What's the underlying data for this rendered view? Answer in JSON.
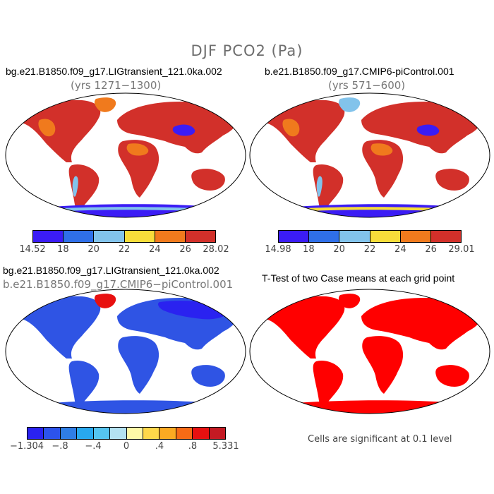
{
  "suptitle": "DJF PCO2 (Pa)",
  "panels": [
    {
      "title": "bg.e21.B1850.f09_g17.LIGtransient_121.0ka.002",
      "subtitle": "(yrs 1271−1300)"
    },
    {
      "title": "b.e21.B1850.f09_g17.CMIP6-piControl.001",
      "subtitle": "(yrs 571−600)"
    },
    {
      "title": "bg.e21.B1850.f09_g17.LIGtransient_121.0ka.002",
      "subtitle": "b.e21.B1850.f09_g17.CMIP6−piControl.001"
    },
    {
      "title": "T-Test of two Case means at each grid point",
      "subtitle": ""
    }
  ],
  "colorbars": [
    {
      "colors": [
        "#3b1cf5",
        "#2f6fe8",
        "#82c3eb",
        "#f7dd3a",
        "#f07a1d",
        "#d2302a"
      ],
      "labels": [
        "14.52",
        "18",
        "20",
        "22",
        "24",
        "26",
        "28.02"
      ]
    },
    {
      "colors": [
        "#3b1cf5",
        "#2f6fe8",
        "#82c3eb",
        "#f7dd3a",
        "#f07a1d",
        "#d2302a"
      ],
      "labels": [
        "14.98",
        "18",
        "20",
        "22",
        "24",
        "26",
        "29.01"
      ]
    },
    {
      "colors": [
        "#2a22f0",
        "#2c53ec",
        "#2f7ee6",
        "#28a8ef",
        "#55c4f0",
        "#b4e2f2",
        "#fff9a8",
        "#ffd84a",
        "#fbaa22",
        "#f76b15",
        "#e81010",
        "#c41a23"
      ],
      "labels": [
        "−1.304",
        "−.8",
        "−.4",
        "0",
        ".4",
        ".8",
        "5.331"
      ]
    }
  ],
  "note": "Cells are significant at 0.1 level",
  "map_fill": {
    "panel1": "#d2302a",
    "panel2": "#d2302a",
    "panel3": "#2f54e4",
    "panel4": "#ff0000",
    "accent_low": "#3b1cf5",
    "accent_mid": "#f07a1d",
    "accent_cool": "#82c3eb",
    "accent_yellow": "#f7dd3a"
  }
}
